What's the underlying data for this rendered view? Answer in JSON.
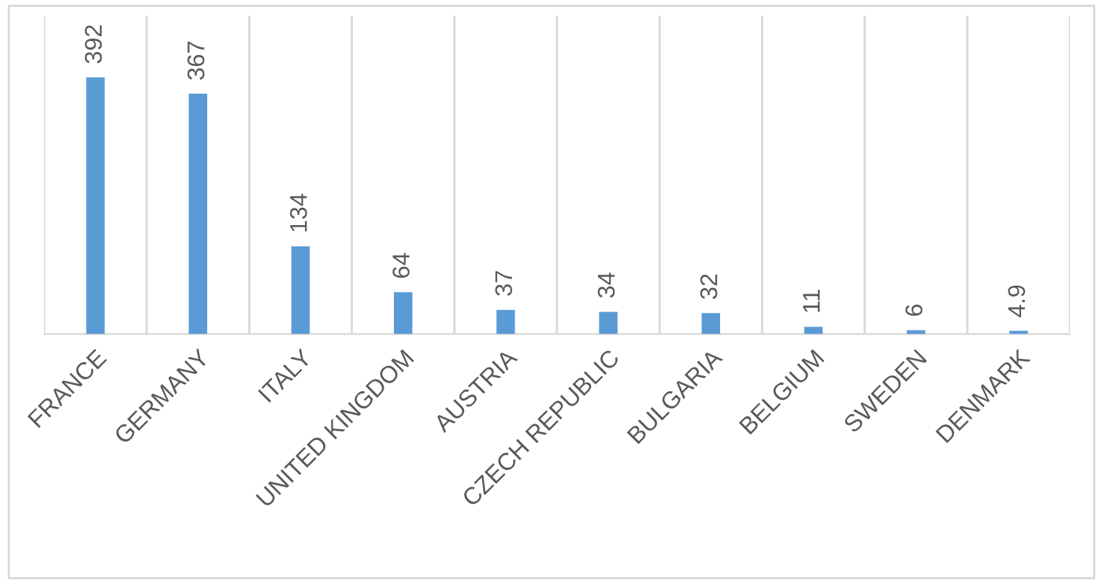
{
  "chart_data": {
    "type": "bar",
    "categories": [
      "FRANCE",
      "GERMANY",
      "ITALY",
      "UNITED KINGDOM",
      "AUSTRIA",
      "CZECH REPUBLIC",
      "BULGARIA",
      "BELGIUM",
      "SWEDEN",
      "DENMARK"
    ],
    "values": [
      392,
      367,
      134,
      64,
      37,
      34,
      32,
      11,
      6,
      4.9
    ],
    "color": "#5b9bd5",
    "data_labels": true,
    "grid": "x"
  }
}
